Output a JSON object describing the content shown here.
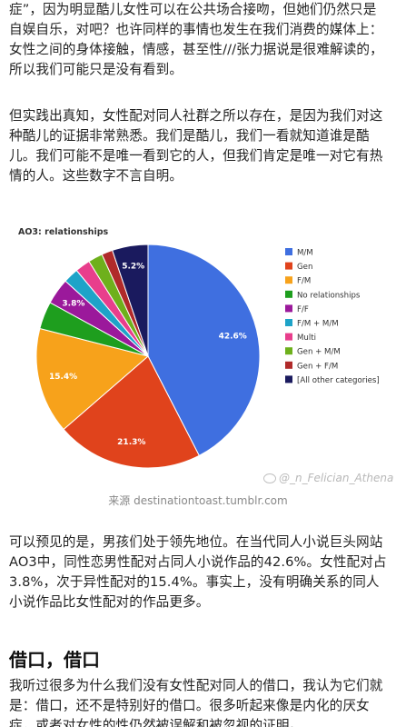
{
  "article": {
    "p1": "症”，因为明显酷儿女性可以在公共场合接吻，但她们仍然只是自娱自乐，对吧？也许同样的事情也发生在我们消费的媒体上：女性之间的身体接触，情感，甚至性///张力据说是很难解读的，所以我们可能只是没有看到。",
    "p2": "但实践出真知，女性配对同人社群之所以存在，是因为我们对这种酷儿的证据非常熟悉。我们是酷儿，我们一看就知道谁是酷儿。我们可能不是唯一看到它的人，但我们肯定是唯一对它有热情的人。这些数字不言自明。",
    "p3": "可以预见的是，男孩们处于领先地位。在当代同人小说巨头网站AO3中，同性恋男性配对占同人小说作品的42.6%。女性配对占3.8%，次于异性配对的15.4%。事实上，没有明确关系的同人小说作品比女性配对的作品更多。",
    "heading": "借口，借口",
    "p4": "我听过很多为什么我们没有女性配对同人的借口，我认为它们就是：借口，还不是特别好的借口。很多听起来像是内化的厌女症，或者对女性的性仍然被误解和被忽视的证明。"
  },
  "figure": {
    "caption": "来源  destinationtoast.tumblr.com",
    "watermark": "@_n_Felician_Athena"
  },
  "chart_data": {
    "type": "pie",
    "title": "AO3: relationships",
    "slices": [
      {
        "name": "M/M",
        "value": 42.6,
        "color": "#3f6fe0",
        "label": "42.6%"
      },
      {
        "name": "Gen",
        "value": 21.3,
        "color": "#e0431c",
        "label": "21.3%"
      },
      {
        "name": "F/M",
        "value": 15.4,
        "color": "#f7a21b",
        "label": "15.4%"
      },
      {
        "name": "No relationships",
        "value": 4.0,
        "color": "#1e9e1e",
        "label": ""
      },
      {
        "name": "F/F",
        "value": 3.8,
        "color": "#9b199b",
        "label": "3.8%"
      },
      {
        "name": "F/M + M/M",
        "value": 2.2,
        "color": "#1ea3c8",
        "label": ""
      },
      {
        "name": "Multi",
        "value": 2.2,
        "color": "#e83e8c",
        "label": ""
      },
      {
        "name": "Gen + M/M",
        "value": 2.1,
        "color": "#6eb01c",
        "label": ""
      },
      {
        "name": "Gen + F/M",
        "value": 1.6,
        "color": "#b02a2a",
        "label": ""
      },
      {
        "name": "[All other categories]",
        "value": 5.2,
        "color": "#1a1a5e",
        "label": "5.2%"
      }
    ],
    "legend_position": "right"
  }
}
